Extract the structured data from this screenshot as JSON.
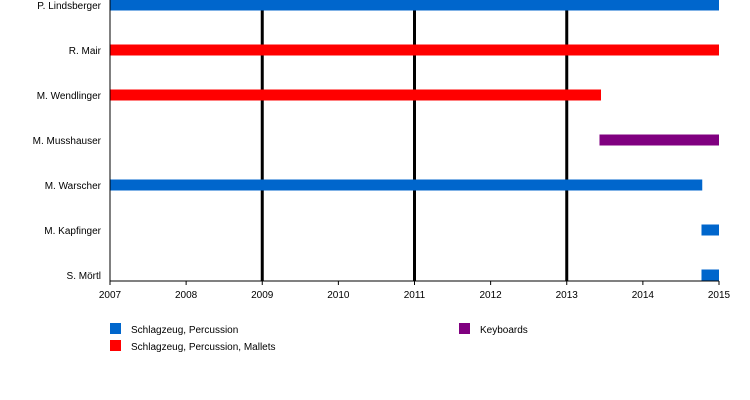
{
  "chart_data": {
    "type": "timeline",
    "title": "",
    "xlabel": "",
    "ylabel": "",
    "x_range": [
      2007,
      2015
    ],
    "x_ticks": [
      "2007",
      "2008",
      "2009",
      "2010",
      "2011",
      "2012",
      "2013",
      "2014",
      "2015"
    ],
    "major_gridlines": [
      2009,
      2011,
      2013
    ],
    "grid": true,
    "legend_position": "bottom",
    "roles": [
      {
        "name": "Schlagzeug, Percussion",
        "color": "#0066cc"
      },
      {
        "name": "Schlagzeug, Percussion, Mallets",
        "color": "#ff0000"
      },
      {
        "name": "Keyboards",
        "color": "#800080"
      }
    ],
    "members": [
      {
        "name": "P. Lindsberger",
        "bars": [
          {
            "role": 0,
            "start": 2007.0,
            "end": 2015.0
          }
        ]
      },
      {
        "name": "R. Mair",
        "bars": [
          {
            "role": 1,
            "start": 2007.0,
            "end": 2015.0
          }
        ]
      },
      {
        "name": "M. Wendlinger",
        "bars": [
          {
            "role": 1,
            "start": 2007.0,
            "end": 2013.45
          }
        ]
      },
      {
        "name": "M. Musshauser",
        "bars": [
          {
            "role": 2,
            "start": 2013.43,
            "end": 2015.0
          }
        ]
      },
      {
        "name": "M. Warscher",
        "bars": [
          {
            "role": 0,
            "start": 2007.0,
            "end": 2014.78
          }
        ]
      },
      {
        "name": "M. Kapfinger",
        "bars": [
          {
            "role": 0,
            "start": 2014.77,
            "end": 2015.0
          }
        ]
      },
      {
        "name": "S. Mörtl",
        "bars": [
          {
            "role": 0,
            "start": 2014.77,
            "end": 2015.0
          }
        ]
      }
    ]
  }
}
